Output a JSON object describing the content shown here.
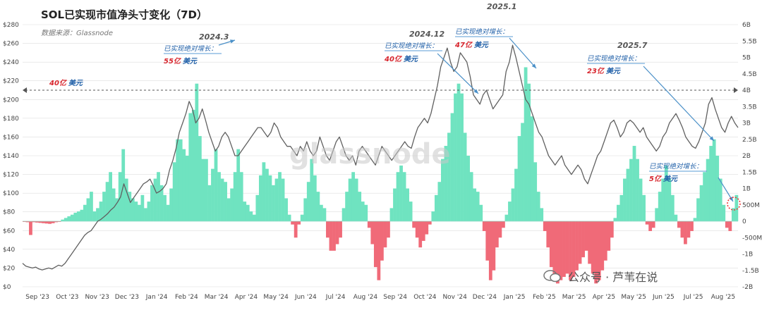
{
  "chart_data": {
    "type": "bar",
    "title": "SOL已实现市值净头寸变化（7D）",
    "subtitle": "数据来源：Glassnode",
    "watermark_text": "glassnode",
    "x_tick_labels": [
      "Sep '23",
      "Oct '23",
      "Nov '23",
      "Dec '23",
      "Jan '24",
      "Feb '24",
      "Mar '24",
      "Apr '24",
      "May '24",
      "Jun '24",
      "Jul '24",
      "Aug '24",
      "Sep '24",
      "Oct '24",
      "Nov '24",
      "Dec '24",
      "Jan '25",
      "Feb '25",
      "Mar '25",
      "Apr '25",
      "May '25",
      "Jun '25",
      "Jul '25",
      "Aug '25"
    ],
    "y_left": {
      "min": 0,
      "max": 280,
      "ticks": [
        "$0",
        "$20",
        "$40",
        "$60",
        "$80",
        "$100",
        "$120",
        "$140",
        "$160",
        "$180",
        "$200",
        "$220",
        "$240",
        "$260",
        "$280"
      ]
    },
    "y_right": {
      "min": -2000,
      "max": 6000,
      "ticks": [
        "-2B",
        "-1.5B",
        "-1B",
        "-500M",
        "0",
        "500M",
        "1B",
        "1.5B",
        "2B",
        "2.5B",
        "3B",
        "3.5B",
        "4B",
        "4.5B",
        "5B",
        "5.5B",
        "6B"
      ]
    },
    "reference_line": {
      "value": 4000,
      "label_num": "40亿",
      "label_unit": "美元"
    },
    "series": [
      {
        "kind": "bar",
        "unit": "USD millions, weekly",
        "positive_color": "#6fe3c0",
        "negative_color": "#f06a78",
        "values": [
          -20,
          -30,
          -420,
          -30,
          -40,
          -50,
          -60,
          -70,
          -80,
          -60,
          -30,
          -20,
          50,
          100,
          150,
          200,
          260,
          300,
          350,
          500,
          700,
          900,
          300,
          400,
          600,
          900,
          1200,
          1500,
          1000,
          700,
          1500,
          2200,
          1300,
          900,
          700,
          600,
          500,
          800,
          400,
          600,
          1100,
          1300,
          1500,
          1100,
          800,
          500,
          1000,
          1800,
          2500,
          2500,
          2200,
          2000,
          3300,
          3400,
          4200,
          2600,
          1900,
          1900,
          1100,
          1600,
          2200,
          1500,
          1300,
          1200,
          700,
          1000,
          1500,
          2200,
          1500,
          600,
          500,
          300,
          200,
          800,
          1400,
          1800,
          1600,
          1400,
          1100,
          1300,
          1500,
          1300,
          700,
          200,
          -100,
          -500,
          -100,
          200,
          700,
          1200,
          1900,
          1400,
          900,
          500,
          400,
          -500,
          -900,
          -900,
          -700,
          -500,
          400,
          900,
          1300,
          1500,
          1300,
          900,
          600,
          500,
          -200,
          -700,
          -1400,
          -1800,
          -1200,
          -800,
          -500,
          400,
          1000,
          1500,
          1700,
          1500,
          1000,
          600,
          -200,
          -500,
          -800,
          -600,
          -400,
          -100,
          300,
          800,
          1200,
          1900,
          2300,
          2700,
          3300,
          3900,
          4200,
          3900,
          2700,
          2000,
          1500,
          1000,
          900,
          500,
          -300,
          -1200,
          -1800,
          -1500,
          -800,
          -500,
          -200,
          200,
          600,
          1000,
          1600,
          2600,
          3000,
          4700,
          4200,
          3200,
          1800,
          900,
          400,
          -300,
          -800,
          -1400,
          -1600,
          -1900,
          -1800,
          -1700,
          -1600,
          -1800,
          -1700,
          -1500,
          -1300,
          -1100,
          -900,
          -1300,
          -1600,
          -1900,
          -1800,
          -1500,
          -1200,
          -900,
          -500,
          100,
          500,
          800,
          1300,
          1600,
          1900,
          2300,
          1900,
          1300,
          800,
          -100,
          -300,
          -200,
          400,
          900,
          1300,
          1700,
          1300,
          800,
          200,
          -200,
          -500,
          -700,
          -500,
          -300,
          100,
          700,
          1100,
          1500,
          1900,
          2300,
          2500,
          2000,
          1300,
          500,
          -200,
          -300,
          400,
          800
        ]
      },
      {
        "kind": "line",
        "unit": "USD price",
        "color": "#606060",
        "values": [
          25,
          22,
          21,
          20,
          21,
          19,
          18,
          19,
          20,
          19,
          21,
          23,
          22,
          25,
          30,
          35,
          40,
          45,
          50,
          55,
          58,
          60,
          65,
          70,
          72,
          75,
          78,
          82,
          85,
          90,
          96,
          110,
          100,
          90,
          95,
          100,
          105,
          110,
          112,
          115,
          108,
          100,
          102,
          105,
          110,
          125,
          135,
          148,
          165,
          175,
          185,
          198,
          190,
          175,
          180,
          190,
          178,
          165,
          155,
          145,
          150,
          160,
          165,
          160,
          150,
          140,
          140,
          145,
          150,
          155,
          160,
          165,
          170,
          170,
          165,
          160,
          165,
          175,
          170,
          160,
          155,
          150,
          150,
          145,
          140,
          150,
          145,
          155,
          145,
          140,
          145,
          160,
          150,
          140,
          135,
          145,
          155,
          160,
          150,
          140,
          135,
          140,
          130,
          145,
          150,
          145,
          140,
          135,
          130,
          140,
          150,
          145,
          140,
          135,
          140,
          145,
          150,
          155,
          150,
          148,
          160,
          170,
          175,
          180,
          175,
          185,
          200,
          215,
          235,
          245,
          255,
          240,
          230,
          235,
          250,
          245,
          240,
          225,
          205,
          200,
          195,
          205,
          210,
          200,
          190,
          195,
          200,
          205,
          230,
          240,
          258,
          245,
          230,
          215,
          200,
          195,
          185,
          175,
          165,
          160,
          150,
          140,
          135,
          130,
          135,
          140,
          130,
          125,
          120,
          125,
          130,
          125,
          115,
          110,
          120,
          130,
          140,
          145,
          155,
          165,
          175,
          178,
          170,
          160,
          165,
          175,
          178,
          175,
          170,
          165,
          170,
          160,
          155,
          150,
          145,
          150,
          160,
          165,
          175,
          180,
          185,
          178,
          170,
          160,
          155,
          150,
          148,
          155,
          165,
          175,
          195,
          202,
          190,
          180,
          170,
          165,
          175,
          182,
          175,
          170
        ]
      }
    ],
    "annotations": [
      {
        "date": "2024.3",
        "label": "已实现绝对增长：",
        "value_num": "55亿",
        "value_unit": "美元"
      },
      {
        "date": "2024.12",
        "label": "已实现绝对增长：",
        "value_num": "40亿",
        "value_unit": "美元"
      },
      {
        "date": "2025.1",
        "label": "已实现绝对增长：",
        "value_num": "47亿",
        "value_unit": "美元"
      },
      {
        "date": "2025.7",
        "label": "已实现绝对增长：",
        "value_num": "23亿",
        "value_unit": "美元"
      },
      {
        "date": "",
        "label": "已实现绝对增长：",
        "value_num": "5亿",
        "value_unit": "美元"
      }
    ],
    "grid": true,
    "legend": "none"
  },
  "footer": {
    "account_text": "公众号 · 芦苇在说"
  },
  "colors": {
    "annotation_blue": "#1f5fa8",
    "annotation_red": "#d8262e",
    "gridline": "#dddddd"
  }
}
